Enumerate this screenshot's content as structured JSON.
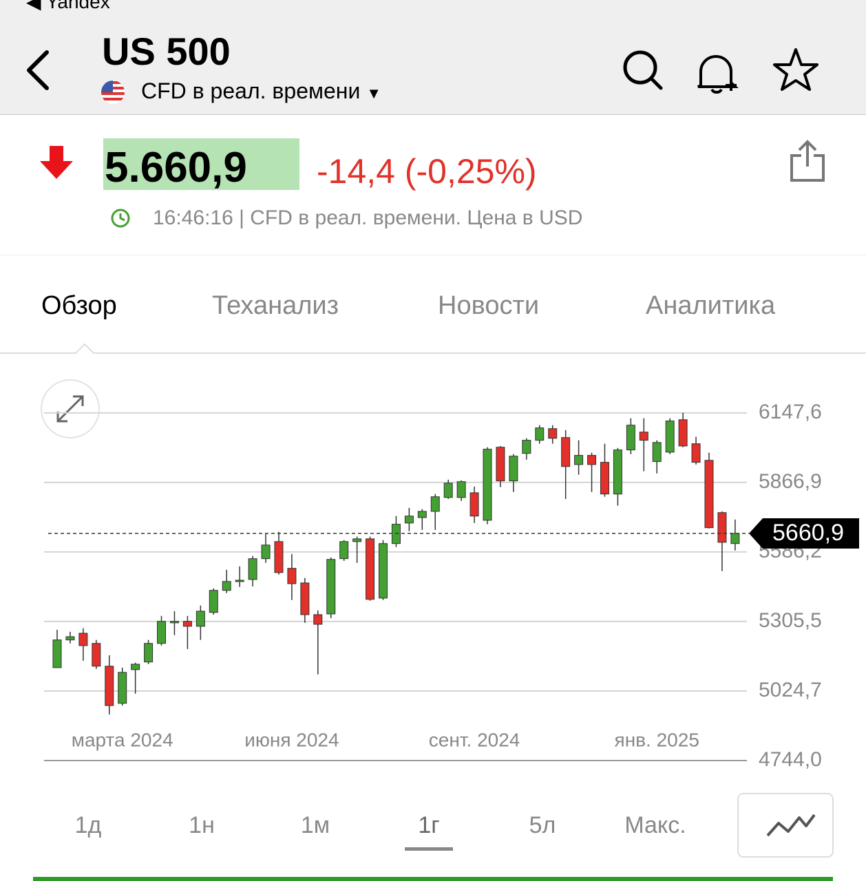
{
  "status_bar": {
    "back_app": "Yandex"
  },
  "header": {
    "title": "US 500",
    "subtitle": "CFD в реал. времени"
  },
  "quote": {
    "price": "5.660,9",
    "change": "-14,4 (-0,25%)",
    "info": "16:46:16 | CFD в реал. времени. Цена в USD"
  },
  "tabs": [
    "Обзор",
    "Теханализ",
    "Новости",
    "Аналитика"
  ],
  "ranges": [
    "1д",
    "1н",
    "1м",
    "1г",
    "5л",
    "Макс."
  ],
  "chart_data": {
    "type": "candlestick",
    "up_color": "#44a032",
    "down_color": "#e3302a",
    "categories": [
      null,
      null,
      null,
      null,
      null,
      "марта 2024",
      null,
      null,
      null,
      null,
      null,
      null,
      null,
      null,
      null,
      null,
      null,
      null,
      "июня 2024",
      null,
      null,
      null,
      null,
      null,
      null,
      null,
      null,
      null,
      null,
      null,
      null,
      null,
      "сент. 2024",
      null,
      null,
      null,
      null,
      null,
      null,
      null,
      null,
      null,
      null,
      null,
      null,
      null,
      "янв. 2025",
      null,
      null,
      null,
      null,
      null,
      null
    ],
    "open": [
      5119,
      5231,
      5258,
      5217,
      5125,
      4975,
      5111,
      5142,
      5217,
      5300,
      5306,
      5286,
      5342,
      5431,
      5467,
      5475,
      5559,
      5628,
      5520,
      5461,
      5333,
      5336,
      5559,
      5628,
      5639,
      5400,
      5620,
      5703,
      5725,
      5750,
      5806,
      5806,
      5825,
      5714,
      6009,
      5873,
      5984,
      6037,
      6084,
      6048,
      5939,
      5976,
      5948,
      5820,
      5998,
      6070,
      5951,
      5989,
      6120,
      6023,
      5956,
      5745,
      5620
    ],
    "high": [
      5272,
      5264,
      5278,
      5231,
      5169,
      5119,
      5139,
      5231,
      5328,
      5347,
      5328,
      5370,
      5439,
      5514,
      5528,
      5570,
      5661,
      5667,
      5578,
      5481,
      5350,
      5564,
      5634,
      5648,
      5648,
      5634,
      5731,
      5764,
      5759,
      5820,
      5878,
      5875,
      5850,
      6009,
      6014,
      5981,
      6045,
      6098,
      6098,
      6078,
      6037,
      5987,
      6023,
      6006,
      6126,
      6126,
      6037,
      6126,
      6148,
      6051,
      5987,
      5750,
      5717
    ],
    "low": [
      5119,
      5217,
      5147,
      5114,
      4930,
      4966,
      5014,
      5133,
      5208,
      5250,
      5194,
      5231,
      5333,
      5420,
      5445,
      5447,
      5542,
      5495,
      5392,
      5300,
      5092,
      5319,
      5550,
      5542,
      5389,
      5392,
      5606,
      5670,
      5675,
      5675,
      5800,
      5792,
      5703,
      5698,
      5848,
      5828,
      5959,
      6023,
      6023,
      5800,
      5898,
      5828,
      5809,
      5773,
      5981,
      5912,
      5903,
      5981,
      6009,
      5939,
      5681,
      5509,
      5592
    ],
    "close": [
      5231,
      5244,
      5208,
      5125,
      4966,
      5100,
      5133,
      5217,
      5306,
      5306,
      5286,
      5347,
      5431,
      5467,
      5472,
      5559,
      5614,
      5503,
      5458,
      5333,
      5294,
      5556,
      5628,
      5639,
      5395,
      5620,
      5698,
      5731,
      5750,
      5809,
      5864,
      5870,
      5731,
      6001,
      5873,
      5973,
      6037,
      6087,
      6045,
      5931,
      5976,
      5939,
      5820,
      5998,
      6098,
      6037,
      6028,
      6115,
      6014,
      5948,
      5684,
      5625,
      5661
    ],
    "ylim": [
      4744.0,
      6250
    ],
    "yticks": [
      {
        "value": 4744.0,
        "label": "4744,0"
      },
      {
        "value": 5024.7,
        "label": "5024,7"
      },
      {
        "value": 5305.5,
        "label": "5305,5"
      },
      {
        "value": 5586.2,
        "label": "5586,2"
      },
      {
        "value": 5866.9,
        "label": "5866,9"
      },
      {
        "value": 6147.6,
        "label": "6147,6"
      }
    ],
    "grid": true,
    "current": {
      "value": 5660.9,
      "label": "5660,9"
    }
  }
}
